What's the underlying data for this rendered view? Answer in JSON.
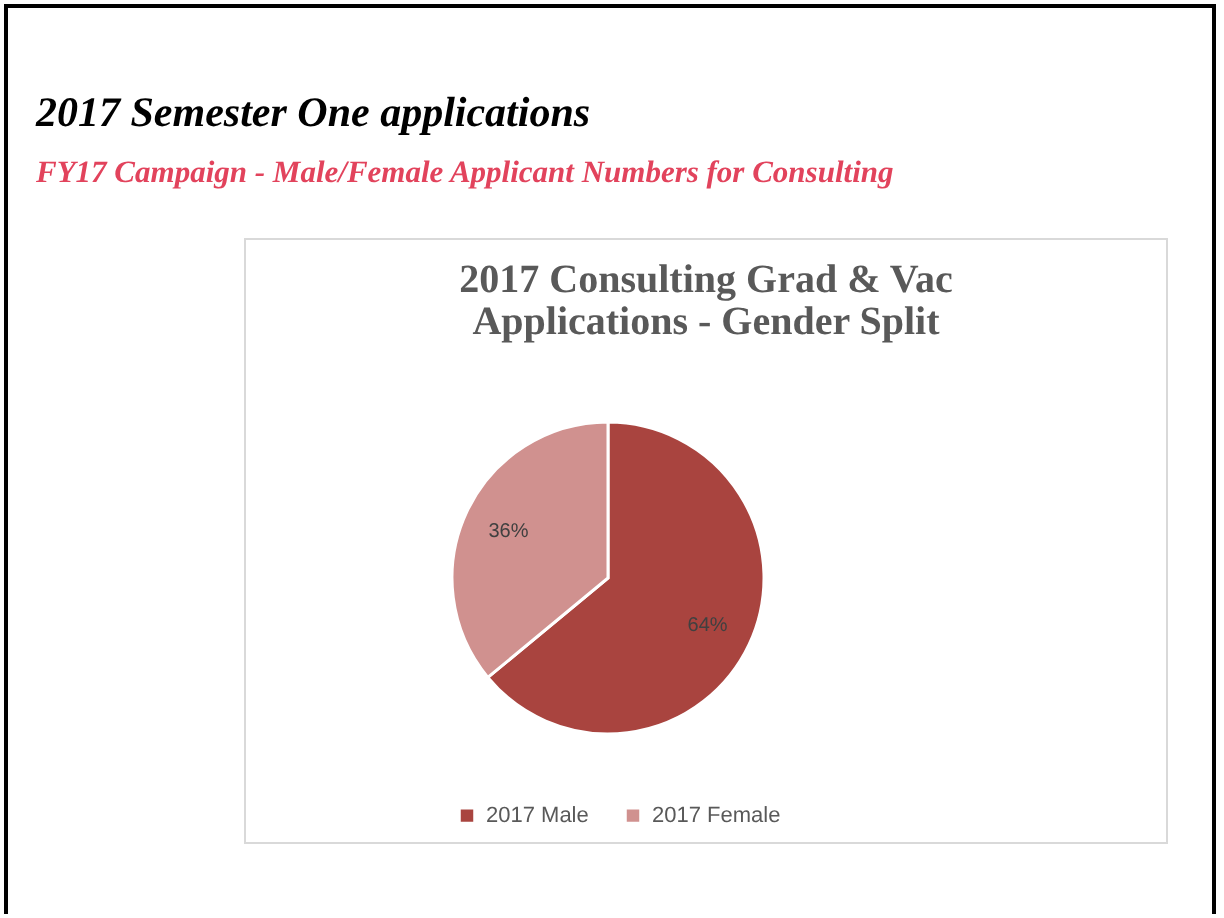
{
  "chart_data": {
    "type": "pie",
    "title": "2017 Consulting Grad & Vac Applications - Gender Split",
    "annotations": [
      "2017 Semester One applications",
      "FY17 Campaign - Male/Female Applicant Numbers for Consulting"
    ],
    "categories": [
      "2017 Male",
      "2017 Female"
    ],
    "values": [
      64,
      36
    ],
    "value_labels": [
      "64%",
      "36%"
    ],
    "colors": [
      "#a9443f",
      "#d0918f"
    ],
    "legend": "bottom"
  }
}
